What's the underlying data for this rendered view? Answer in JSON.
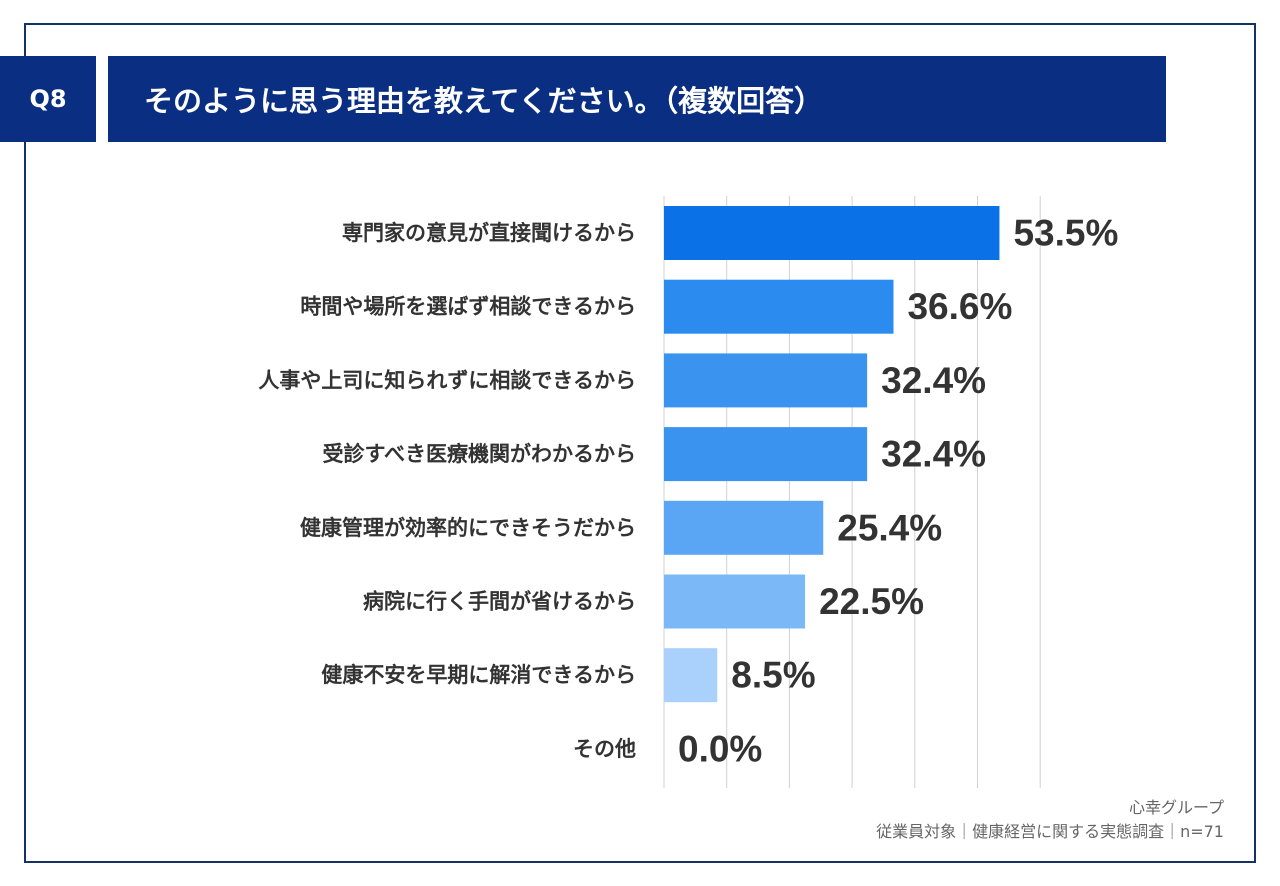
{
  "header": {
    "badge": "Q8",
    "title": "そのように思う理由を教えてください。（複数回答）"
  },
  "colors": {
    "header_bg": "#0a2f82",
    "bar_shades": [
      "#0a72e6",
      "#2c8bef",
      "#3b93f0",
      "#3b93f0",
      "#5aa6f5",
      "#7ab8f8",
      "#a9d1fb",
      "#c9e2fd"
    ],
    "grid": "#d0d0d0",
    "text": "#333333"
  },
  "chart_data": {
    "type": "bar",
    "orientation": "horizontal",
    "categories": [
      "専門家の意見が直接聞けるから",
      "時間や場所を選ばず相談できるから",
      "人事や上司に知られずに相談できるから",
      "受診すべき医療機関がわかるから",
      "健康管理が効率的にできそうだから",
      "病院に行く手間が省けるから",
      "健康不安を早期に解消できるから",
      "その他"
    ],
    "values": [
      53.5,
      36.6,
      32.4,
      32.4,
      25.4,
      22.5,
      8.5,
      0.0
    ],
    "data_labels": [
      "53.5%",
      "36.6%",
      "32.4%",
      "32.4%",
      "25.4%",
      "22.5%",
      "8.5%",
      "0.0%"
    ],
    "xlim": [
      0,
      60
    ],
    "grid_step": 10,
    "grid": true
  },
  "source": {
    "org": "心幸グループ",
    "description": "従業員対象｜健康経営に関する実態調査｜n=71"
  }
}
